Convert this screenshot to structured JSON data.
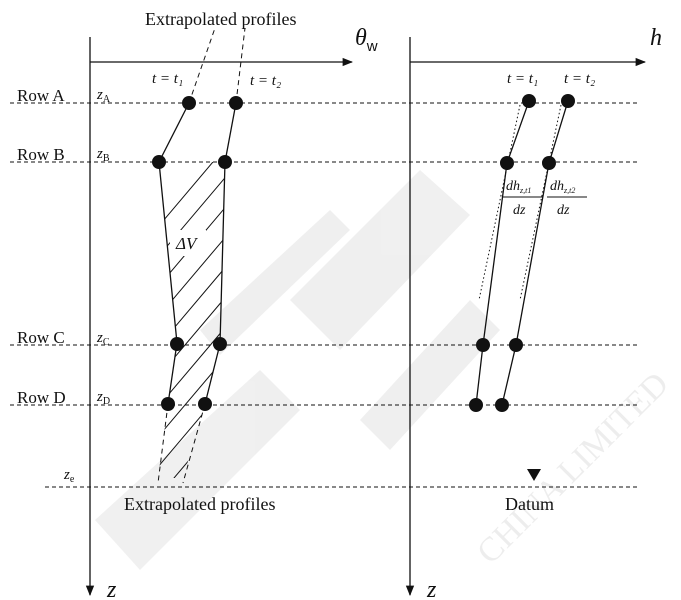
{
  "colors": {
    "ink": "#111111",
    "watermark": "#e9e9e9"
  },
  "labels": {
    "extrap_top": "Extrapolated profiles",
    "extrap_bottom": "Extrapolated profiles",
    "theta_axis": "θ",
    "theta_sub": "w",
    "h_axis": "h",
    "z_left": "z",
    "z_right": "z",
    "datum": "Datum",
    "delta_v": "ΔV",
    "t1_left": "t = t₁",
    "t2_left": "t = t₂",
    "t1_right": "t = t₁",
    "t2_right": "t = t₂",
    "dh_t1_num": "dh",
    "dh_t1_sub": "z,t1",
    "dh_t2_num": "dh",
    "dh_t2_sub": "z,t2",
    "dz_1": "dz",
    "dz_2": "dz"
  },
  "rows": [
    {
      "name": "Row A",
      "z": "z",
      "zsub": "A"
    },
    {
      "name": "Row B",
      "z": "z",
      "zsub": "B"
    },
    {
      "name": "Row C",
      "z": "z",
      "zsub": "C"
    },
    {
      "name": "Row D",
      "z": "z",
      "zsub": "D"
    }
  ],
  "ze": {
    "z": "z",
    "zsub": "e"
  },
  "watermark": "CHINA LIMITED"
}
